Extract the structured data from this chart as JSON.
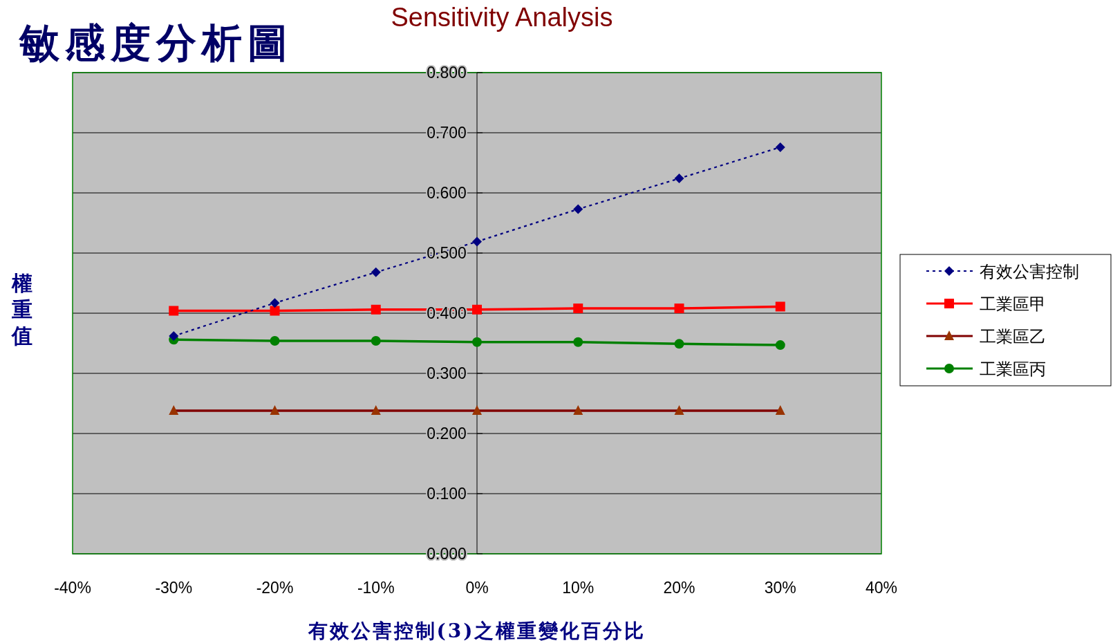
{
  "chart_data": {
    "type": "line",
    "title": "Sensitivity Analysis",
    "xlabel": "有效公害控制(3)之權重變化百分比",
    "ylabel": "權重值",
    "annotations": [
      "敏感度分析圖"
    ],
    "x": [
      -30,
      -20,
      -10,
      0,
      10,
      20,
      30
    ],
    "xlim": [
      -40,
      40
    ],
    "xticks": [
      {
        "value": -40,
        "label": "-40%"
      },
      {
        "value": -30,
        "label": "-30%"
      },
      {
        "value": -20,
        "label": "-20%"
      },
      {
        "value": -10,
        "label": "-10%"
      },
      {
        "value": 0,
        "label": "0%"
      },
      {
        "value": 10,
        "label": "10%"
      },
      {
        "value": 20,
        "label": "20%"
      },
      {
        "value": 30,
        "label": "30%"
      },
      {
        "value": 40,
        "label": "40%"
      }
    ],
    "ylim": [
      0,
      0.8
    ],
    "yticks": [
      {
        "value": 0,
        "label": "0.000"
      },
      {
        "value": 0.1,
        "label": "0.100"
      },
      {
        "value": 0.2,
        "label": "0.200"
      },
      {
        "value": 0.3,
        "label": "0.300"
      },
      {
        "value": 0.4,
        "label": "0.400"
      },
      {
        "value": 0.5,
        "label": "0.500"
      },
      {
        "value": 0.6,
        "label": "0.600"
      },
      {
        "value": 0.7,
        "label": "0.700"
      },
      {
        "value": 0.8,
        "label": "0.800"
      }
    ],
    "grid": "y",
    "legend": "right",
    "series": [
      {
        "name": "有效公害控制",
        "color": "#000080",
        "marker": "diamond",
        "line_style": "dotted",
        "values": [
          0.362,
          0.417,
          0.468,
          0.519,
          0.573,
          0.624,
          0.676
        ]
      },
      {
        "name": "工業區甲",
        "color": "#ff0000",
        "marker": "square",
        "line_style": "solid",
        "values": [
          0.404,
          0.404,
          0.406,
          0.406,
          0.408,
          0.408,
          0.411
        ]
      },
      {
        "name": "工業區乙",
        "color": "#800000",
        "marker": "triangle",
        "line_style": "solid",
        "values": [
          0.238,
          0.238,
          0.238,
          0.238,
          0.238,
          0.238,
          0.238
        ]
      },
      {
        "name": "工業區丙",
        "color": "#008000",
        "marker": "circle",
        "line_style": "solid",
        "values": [
          0.356,
          0.354,
          0.354,
          0.352,
          0.352,
          0.349,
          0.347
        ]
      }
    ]
  }
}
